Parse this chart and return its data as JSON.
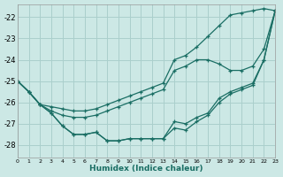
{
  "xlabel": "Humidex (Indice chaleur)",
  "background_color": "#cce8e5",
  "grid_color": "#aacfcc",
  "line_color": "#1a6e64",
  "xlim": [
    0,
    23
  ],
  "ylim": [
    -28.6,
    -21.4
  ],
  "yticks": [
    -28,
    -27,
    -26,
    -25,
    -24,
    -23,
    -22
  ],
  "xticks": [
    0,
    1,
    2,
    3,
    4,
    5,
    6,
    7,
    8,
    9,
    10,
    11,
    12,
    13,
    14,
    15,
    16,
    17,
    18,
    19,
    20,
    21,
    22,
    23
  ],
  "lines": [
    {
      "x": [
        0,
        1,
        2,
        3,
        4,
        5,
        6,
        7,
        8,
        9,
        10,
        11,
        12,
        13,
        14,
        15,
        16,
        17,
        18,
        19,
        20,
        21,
        22,
        23
      ],
      "y": [
        -25.0,
        -25.5,
        -26.1,
        -26.2,
        -26.3,
        -26.4,
        -26.4,
        -26.3,
        -26.1,
        -25.9,
        -25.7,
        -25.5,
        -25.3,
        -25.1,
        -24.0,
        -23.8,
        -23.4,
        -22.9,
        -22.4,
        -21.9,
        -21.8,
        -21.7,
        -21.6,
        -21.7
      ]
    },
    {
      "x": [
        0,
        1,
        2,
        3,
        4,
        5,
        6,
        7,
        8,
        9,
        10,
        11,
        12,
        13,
        14,
        15,
        16,
        17,
        18,
        19,
        20,
        21,
        22,
        23
      ],
      "y": [
        -25.0,
        -25.5,
        -26.1,
        -26.4,
        -26.6,
        -26.7,
        -26.7,
        -26.6,
        -26.4,
        -26.2,
        -26.0,
        -25.8,
        -25.6,
        -25.4,
        -24.5,
        -24.3,
        -24.0,
        -24.0,
        -24.2,
        -24.5,
        -24.5,
        -24.3,
        -23.5,
        -21.7
      ]
    },
    {
      "x": [
        0,
        1,
        2,
        3,
        4,
        5,
        6,
        7,
        8,
        9,
        10,
        11,
        12,
        13,
        14,
        15,
        16,
        17,
        18,
        19,
        20,
        21,
        22,
        23
      ],
      "y": [
        -25.0,
        -25.5,
        -26.1,
        -26.5,
        -27.1,
        -27.5,
        -27.5,
        -27.4,
        -27.8,
        -27.8,
        -27.7,
        -27.7,
        -27.7,
        -27.7,
        -26.9,
        -27.0,
        -26.7,
        -26.5,
        -25.8,
        -25.5,
        -25.3,
        -25.1,
        -24.0,
        -21.7
      ]
    },
    {
      "x": [
        0,
        1,
        2,
        3,
        4,
        5,
        6,
        7,
        8,
        9,
        10,
        11,
        12,
        13,
        14,
        15,
        16,
        17,
        18,
        19,
        20,
        21,
        22,
        23
      ],
      "y": [
        -25.0,
        -25.5,
        -26.1,
        -26.5,
        -27.1,
        -27.5,
        -27.5,
        -27.4,
        -27.8,
        -27.8,
        -27.7,
        -27.7,
        -27.7,
        -27.7,
        -27.2,
        -27.3,
        -26.9,
        -26.6,
        -26.0,
        -25.6,
        -25.4,
        -25.2,
        -24.0,
        -21.7
      ]
    }
  ]
}
